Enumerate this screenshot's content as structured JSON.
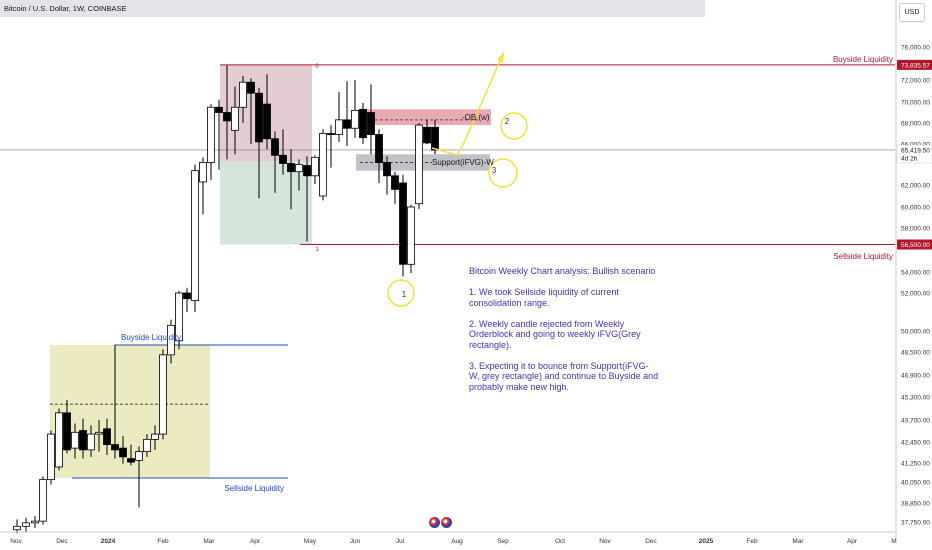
{
  "header": {
    "title": "Bitcoin / U.S. Dollar, 1W, COINBASE",
    "currency": "USD"
  },
  "annotations": {
    "buyside_right": "Buyside Liquidity",
    "sellside_right": "Sellside Liquidity",
    "buyside_left": "Buyside Liquidity",
    "sellside_left": "Sellside Liquidity",
    "ob_label": "-OB (w)",
    "support_label": "Support(iFVG)-W",
    "zone_top_marker": "0",
    "zone_bottom_marker": "1",
    "circle_1": "1",
    "circle_2": "2",
    "circle_3": "3"
  },
  "analysis": {
    "title": "Bitcoin Weekly Chart analysis: Bullish scenario",
    "point1": "1. We took Sellside liquidity of current consolidation range.",
    "point2": "2. Weekly candle rejected from Weekly Orderblock and going to weekly iFVG(Grey rectangle).",
    "point3": "3. Expecting it to bounce from Support(iFVG-W, grey rectangle) and continue to Buyside and probably make new high."
  },
  "price_axis": {
    "ticks": [
      "76,000.00",
      "72,000.00",
      "70,000.00",
      "68,000.00",
      "66,000.00",
      "62,000.00",
      "60,000.00",
      "58,000.00",
      "54,000.00",
      "52,000.00",
      "50,000.00",
      "48,500.00",
      "46,900.00",
      "45,300.00",
      "43,700.00",
      "42,450.00",
      "41,250.00",
      "40,050.00",
      "38,850.00",
      "37,750.00"
    ],
    "buyside_value": "73,835.57",
    "sellside_value": "56,500.00",
    "current_price": "65,419.50",
    "countdown": "4d 2h"
  },
  "time_axis": {
    "labels": [
      "Nov",
      "Dec",
      "2024",
      "Feb",
      "Mar",
      "Apr",
      "May",
      "Jun",
      "Jul",
      "Aug",
      "Sep",
      "Oct",
      "Nov",
      "Dec",
      "2025",
      "Feb",
      "Mar",
      "Apr",
      "M"
    ],
    "bold": [
      "2024",
      "2025"
    ]
  },
  "colors": {
    "bull": "#ffffff",
    "bear": "#000000",
    "wick": "#000000",
    "liquidity": "#b2182b",
    "blue_level": "#1c4bc4",
    "text_purple": "#4a2fb8",
    "arrow": "#f5e03a",
    "circle": "#f5e03a",
    "ob_fill": "#e89aa5",
    "ifvg_fill": "#b0b3ba",
    "range_top": "#d9b7c0",
    "range_bottom": "#c7dccf",
    "consolidation": "#e9e6b6"
  },
  "chart_data": {
    "type": "candlestick",
    "title": "Bitcoin / U.S. Dollar, 1W, COINBASE",
    "ylim": [
      37000,
      78000
    ],
    "candles": [
      {
        "x": 17,
        "o": 37300,
        "h": 37900,
        "l": 37100,
        "c": 37500
      },
      {
        "x": 26,
        "o": 37500,
        "h": 38000,
        "l": 37200,
        "c": 37700
      },
      {
        "x": 35,
        "o": 37700,
        "h": 38100,
        "l": 37400,
        "c": 37800
      },
      {
        "x": 43,
        "o": 37800,
        "h": 40400,
        "l": 37600,
        "c": 40200
      },
      {
        "x": 51,
        "o": 40200,
        "h": 43100,
        "l": 39900,
        "c": 42900
      },
      {
        "x": 59,
        "o": 41000,
        "h": 44500,
        "l": 40800,
        "c": 44200
      },
      {
        "x": 67,
        "o": 44200,
        "h": 45100,
        "l": 41800,
        "c": 42000
      },
      {
        "x": 75,
        "o": 42100,
        "h": 43500,
        "l": 41500,
        "c": 43000
      },
      {
        "x": 83,
        "o": 43100,
        "h": 43800,
        "l": 41500,
        "c": 42000
      },
      {
        "x": 91,
        "o": 42000,
        "h": 43400,
        "l": 41600,
        "c": 42900
      },
      {
        "x": 99,
        "o": 42900,
        "h": 43700,
        "l": 41900,
        "c": 43000
      },
      {
        "x": 107,
        "o": 43200,
        "h": 43800,
        "l": 41700,
        "c": 42300
      },
      {
        "x": 115,
        "o": 42300,
        "h": 49000,
        "l": 41500,
        "c": 42000
      },
      {
        "x": 123,
        "o": 42100,
        "h": 42800,
        "l": 41200,
        "c": 41600
      },
      {
        "x": 131,
        "o": 41500,
        "h": 42300,
        "l": 41100,
        "c": 41300
      },
      {
        "x": 139,
        "o": 41400,
        "h": 42200,
        "l": 38600,
        "c": 41900
      },
      {
        "x": 147,
        "o": 41900,
        "h": 42900,
        "l": 41600,
        "c": 42600
      },
      {
        "x": 155,
        "o": 42600,
        "h": 43400,
        "l": 42000,
        "c": 42900
      },
      {
        "x": 163,
        "o": 42900,
        "h": 48700,
        "l": 42600,
        "c": 48300
      },
      {
        "x": 171,
        "o": 48300,
        "h": 50600,
        "l": 47700,
        "c": 50300
      },
      {
        "x": 179,
        "o": 49300,
        "h": 52200,
        "l": 48700,
        "c": 52000
      },
      {
        "x": 187,
        "o": 52000,
        "h": 52500,
        "l": 51000,
        "c": 51700
      },
      {
        "x": 195,
        "o": 51600,
        "h": 64000,
        "l": 51000,
        "c": 63400
      },
      {
        "x": 203,
        "o": 62300,
        "h": 64700,
        "l": 59300,
        "c": 64200
      },
      {
        "x": 211,
        "o": 64200,
        "h": 69800,
        "l": 62500,
        "c": 69500
      },
      {
        "x": 219,
        "o": 69500,
        "h": 70200,
        "l": 63500,
        "c": 69000
      },
      {
        "x": 227,
        "o": 69000,
        "h": 73800,
        "l": 64500,
        "c": 68200
      },
      {
        "x": 235,
        "o": 67300,
        "h": 71400,
        "l": 65000,
        "c": 69500
      },
      {
        "x": 243,
        "o": 69500,
        "h": 72500,
        "l": 68000,
        "c": 71800
      },
      {
        "x": 251,
        "o": 71800,
        "h": 72200,
        "l": 66000,
        "c": 70800
      },
      {
        "x": 259,
        "o": 70800,
        "h": 71300,
        "l": 60800,
        "c": 66200
      },
      {
        "x": 267,
        "o": 69800,
        "h": 72700,
        "l": 65500,
        "c": 66500
      },
      {
        "x": 275,
        "o": 66500,
        "h": 67200,
        "l": 61300,
        "c": 64900
      },
      {
        "x": 283,
        "o": 64900,
        "h": 67400,
        "l": 63000,
        "c": 64100
      },
      {
        "x": 291,
        "o": 64100,
        "h": 65500,
        "l": 59800,
        "c": 63300
      },
      {
        "x": 299,
        "o": 63300,
        "h": 64500,
        "l": 61500,
        "c": 64000
      },
      {
        "x": 307,
        "o": 63900,
        "h": 64800,
        "l": 56800,
        "c": 62900
      },
      {
        "x": 315,
        "o": 62900,
        "h": 64900,
        "l": 62100,
        "c": 64700
      },
      {
        "x": 323,
        "o": 61000,
        "h": 67400,
        "l": 60600,
        "c": 67000
      },
      {
        "x": 331,
        "o": 67000,
        "h": 67800,
        "l": 63700,
        "c": 66900
      },
      {
        "x": 339,
        "o": 66900,
        "h": 70900,
        "l": 66200,
        "c": 68300
      },
      {
        "x": 347,
        "o": 68300,
        "h": 71900,
        "l": 65800,
        "c": 67500
      },
      {
        "x": 355,
        "o": 67500,
        "h": 72000,
        "l": 66600,
        "c": 69200
      },
      {
        "x": 363,
        "o": 69300,
        "h": 69900,
        "l": 66000,
        "c": 66600
      },
      {
        "x": 371,
        "o": 69000,
        "h": 71600,
        "l": 65000,
        "c": 66900
      },
      {
        "x": 379,
        "o": 66900,
        "h": 67400,
        "l": 62200,
        "c": 64200
      },
      {
        "x": 387,
        "o": 64200,
        "h": 64800,
        "l": 61100,
        "c": 62900
      },
      {
        "x": 395,
        "o": 62900,
        "h": 63300,
        "l": 60300,
        "c": 61600
      },
      {
        "x": 403,
        "o": 62200,
        "h": 63000,
        "l": 53600,
        "c": 54700
      },
      {
        "x": 411,
        "o": 54700,
        "h": 60200,
        "l": 53900,
        "c": 60000
      },
      {
        "x": 419,
        "o": 60300,
        "h": 68000,
        "l": 59800,
        "c": 67800
      },
      {
        "x": 427,
        "o": 67600,
        "h": 68300,
        "l": 66000,
        "c": 66100
      },
      {
        "x": 435,
        "o": 67600,
        "h": 68300,
        "l": 65000,
        "c": 65400
      }
    ]
  }
}
